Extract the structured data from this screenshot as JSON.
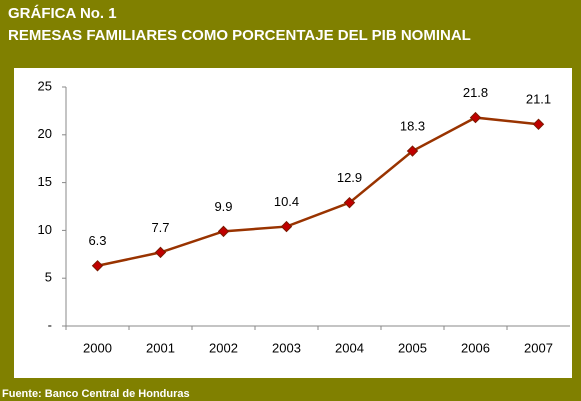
{
  "chart_data": {
    "type": "line",
    "title": "GRÁFICA No. 1",
    "subtitle": "REMESAS FAMILIARES COMO PORCENTAJE DEL PIB NOMINAL",
    "source": "Fuente: Banco Central de Honduras",
    "categories": [
      "2000",
      "2001",
      "2002",
      "2003",
      "2004",
      "2005",
      "2006",
      "2007"
    ],
    "values": [
      6.3,
      7.7,
      9.9,
      10.4,
      12.9,
      18.3,
      21.8,
      21.1
    ],
    "color": "#993300",
    "marker_color": "#c00000",
    "ylim": [
      0,
      25
    ],
    "yticks": [
      {
        "value": 0,
        "label": "-"
      },
      5,
      10,
      15,
      20,
      25
    ],
    "grid": false
  }
}
